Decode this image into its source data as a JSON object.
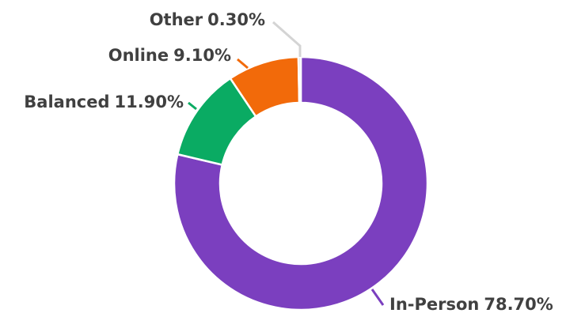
{
  "chart_data": {
    "type": "donut",
    "categories": [
      "In-Person",
      "Balanced",
      "Online",
      "Other"
    ],
    "values": [
      78.7,
      11.9,
      9.1,
      0.3
    ],
    "value_labels": [
      "78.70%",
      "11.90%",
      "9.10%",
      "0.30%"
    ],
    "colors": [
      "#7b3fbf",
      "#0aab63",
      "#f26a0a",
      "#d4d4d4"
    ]
  }
}
